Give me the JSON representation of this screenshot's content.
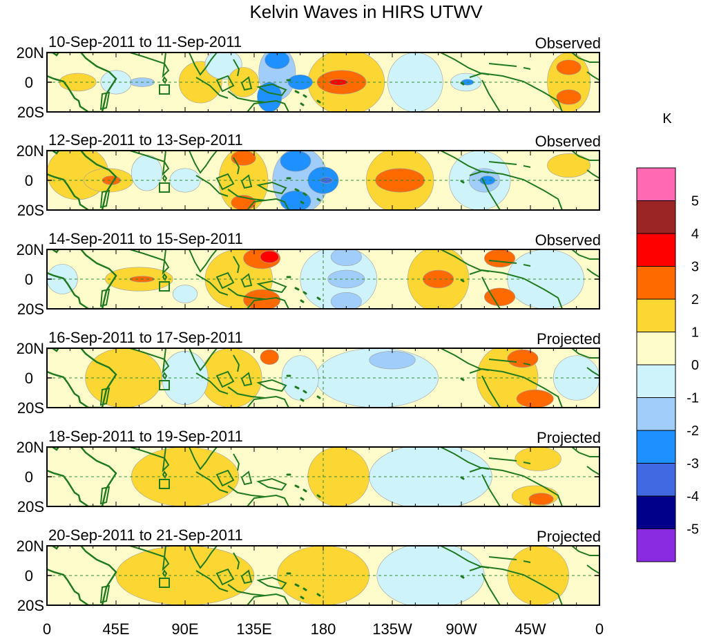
{
  "chart_data": {
    "type": "heatmap",
    "title": "Kelvin Waves in HIRS UTWV",
    "unit": "K",
    "lon_ticks": [
      "0",
      "45E",
      "90E",
      "135E",
      "180",
      "135W",
      "90W",
      "45W",
      "0"
    ],
    "lon_values_deg_east": [
      0,
      45,
      90,
      135,
      180,
      225,
      270,
      315,
      360
    ],
    "lat_ticks": [
      "20N",
      "0",
      "20S"
    ],
    "lat_range": [
      -20,
      20
    ],
    "colorbar": {
      "levels": [
        "5",
        "4",
        "3",
        "2",
        "1",
        "0",
        "-1",
        "-2",
        "-3",
        "-4",
        "-5"
      ],
      "colors": [
        "#ff69b4",
        "#9b2525",
        "#ff0000",
        "#ff6a00",
        "#fcd633",
        "#fffccb",
        "#cef3fb",
        "#a1cdfa",
        "#1e90ff",
        "#4169e1",
        "#00008b",
        "#8a2be2"
      ]
    },
    "panels": [
      {
        "date": "10-Sep-2011 to 11-Sep-2011",
        "status": "Observed",
        "blobs": [
          {
            "lon": 20,
            "lat": 0,
            "rlon": 12,
            "rlat": 6,
            "v": 1
          },
          {
            "lon": 45,
            "lat": 0,
            "rlon": 10,
            "rlat": 8,
            "v": -1
          },
          {
            "lon": 62,
            "lat": 0,
            "rlon": 8,
            "rlat": 3,
            "v": -2
          },
          {
            "lon": 100,
            "lat": 0,
            "rlon": 14,
            "rlat": 14,
            "v": 1
          },
          {
            "lon": 115,
            "lat": 12,
            "rlon": 12,
            "rlat": 10,
            "v": -1
          },
          {
            "lon": 128,
            "lat": 0,
            "rlon": 10,
            "rlat": 10,
            "v": 1
          },
          {
            "lon": 150,
            "lat": 6,
            "rlon": 12,
            "rlat": 18,
            "v": -2
          },
          {
            "lon": 145,
            "lat": -10,
            "rlon": 8,
            "rlat": 10,
            "v": -3
          },
          {
            "lon": 150,
            "lat": 15,
            "rlon": 8,
            "rlat": 6,
            "v": -3
          },
          {
            "lon": 165,
            "lat": 0,
            "rlon": 8,
            "rlat": 5,
            "v": -3
          },
          {
            "lon": 195,
            "lat": 0,
            "rlon": 25,
            "rlat": 22,
            "v": 1
          },
          {
            "lon": 192,
            "lat": 0,
            "rlon": 16,
            "rlat": 8,
            "v": 2
          },
          {
            "lon": 190,
            "lat": 0,
            "rlon": 6,
            "rlat": 2,
            "v": 3
          },
          {
            "lon": 240,
            "lat": 0,
            "rlon": 18,
            "rlat": 20,
            "v": -1
          },
          {
            "lon": 273,
            "lat": 0,
            "rlon": 10,
            "rlat": 6,
            "v": -1
          },
          {
            "lon": 274,
            "lat": 0,
            "rlon": 4,
            "rlat": 2,
            "v": -3
          },
          {
            "lon": 340,
            "lat": 0,
            "rlon": 14,
            "rlat": 20,
            "v": 1
          },
          {
            "lon": 340,
            "lat": 10,
            "rlon": 8,
            "rlat": 5,
            "v": 2
          },
          {
            "lon": 340,
            "lat": -10,
            "rlon": 8,
            "rlat": 5,
            "v": 2
          }
        ]
      },
      {
        "date": "12-Sep-2011 to 13-Sep-2011",
        "status": "Observed",
        "blobs": [
          {
            "lon": 20,
            "lat": 5,
            "rlon": 20,
            "rlat": 18,
            "v": 1
          },
          {
            "lon": 40,
            "lat": 0,
            "rlon": 16,
            "rlat": 8,
            "v": 1
          },
          {
            "lon": 42,
            "lat": 0,
            "rlon": 6,
            "rlat": 3,
            "v": 2
          },
          {
            "lon": 65,
            "lat": 5,
            "rlon": 10,
            "rlat": 12,
            "v": -1
          },
          {
            "lon": 90,
            "lat": 0,
            "rlon": 10,
            "rlat": 8,
            "v": -1
          },
          {
            "lon": 128,
            "lat": 0,
            "rlon": 16,
            "rlat": 22,
            "v": 1
          },
          {
            "lon": 128,
            "lat": 15,
            "rlon": 8,
            "rlat": 5,
            "v": 2
          },
          {
            "lon": 128,
            "lat": -15,
            "rlon": 8,
            "rlat": 5,
            "v": 2
          },
          {
            "lon": 165,
            "lat": 0,
            "rlon": 18,
            "rlat": 22,
            "v": -2
          },
          {
            "lon": 162,
            "lat": 13,
            "rlon": 10,
            "rlat": 7,
            "v": -3
          },
          {
            "lon": 162,
            "lat": -14,
            "rlon": 10,
            "rlat": 7,
            "v": -3
          },
          {
            "lon": 180,
            "lat": 0,
            "rlon": 10,
            "rlat": 9,
            "v": -3
          },
          {
            "lon": 182,
            "lat": 0,
            "rlon": 4,
            "rlat": 2,
            "v": -4
          },
          {
            "lon": 230,
            "lat": 0,
            "rlon": 22,
            "rlat": 22,
            "v": 1
          },
          {
            "lon": 230,
            "lat": 0,
            "rlon": 16,
            "rlat": 8,
            "v": 2
          },
          {
            "lon": 282,
            "lat": 0,
            "rlon": 20,
            "rlat": 20,
            "v": -1
          },
          {
            "lon": 285,
            "lat": 0,
            "rlon": 10,
            "rlat": 8,
            "v": -2
          },
          {
            "lon": 287,
            "lat": 0,
            "rlon": 5,
            "rlat": 3,
            "v": -3
          },
          {
            "lon": 340,
            "lat": 10,
            "rlon": 14,
            "rlat": 8,
            "v": 1
          }
        ]
      },
      {
        "date": "14-Sep-2011 to 15-Sep-2011",
        "status": "Observed",
        "blobs": [
          {
            "lon": 10,
            "lat": 0,
            "rlon": 10,
            "rlat": 10,
            "v": -1
          },
          {
            "lon": 60,
            "lat": 0,
            "rlon": 22,
            "rlat": 8,
            "v": 1
          },
          {
            "lon": 62,
            "lat": 0,
            "rlon": 8,
            "rlat": 2,
            "v": 2
          },
          {
            "lon": 90,
            "lat": -10,
            "rlon": 8,
            "rlat": 6,
            "v": -1
          },
          {
            "lon": 125,
            "lat": 0,
            "rlon": 22,
            "rlat": 20,
            "v": 1
          },
          {
            "lon": 140,
            "lat": 14,
            "rlon": 12,
            "rlat": 7,
            "v": 2
          },
          {
            "lon": 145,
            "lat": 15,
            "rlon": 6,
            "rlat": 4,
            "v": 3
          },
          {
            "lon": 140,
            "lat": -14,
            "rlon": 12,
            "rlat": 7,
            "v": 2
          },
          {
            "lon": 190,
            "lat": 0,
            "rlon": 25,
            "rlat": 22,
            "v": -1
          },
          {
            "lon": 195,
            "lat": 0,
            "rlon": 12,
            "rlat": 6,
            "v": -2
          },
          {
            "lon": 195,
            "lat": 15,
            "rlon": 10,
            "rlat": 6,
            "v": -2
          },
          {
            "lon": 195,
            "lat": -15,
            "rlon": 10,
            "rlat": 6,
            "v": -2
          },
          {
            "lon": 255,
            "lat": 0,
            "rlon": 20,
            "rlat": 22,
            "v": 1
          },
          {
            "lon": 255,
            "lat": 0,
            "rlon": 10,
            "rlat": 6,
            "v": 2
          },
          {
            "lon": 295,
            "lat": 14,
            "rlon": 10,
            "rlat": 6,
            "v": 2
          },
          {
            "lon": 295,
            "lat": -12,
            "rlon": 10,
            "rlat": 6,
            "v": 2
          },
          {
            "lon": 325,
            "lat": 0,
            "rlon": 25,
            "rlat": 20,
            "v": -1
          }
        ]
      },
      {
        "date": "16-Sep-2011 to 17-Sep-2011",
        "status": "Projected",
        "blobs": [
          {
            "lon": 50,
            "lat": 0,
            "rlon": 25,
            "rlat": 20,
            "v": 1
          },
          {
            "lon": 90,
            "lat": 0,
            "rlon": 15,
            "rlat": 18,
            "v": -1
          },
          {
            "lon": 120,
            "lat": 0,
            "rlon": 20,
            "rlat": 20,
            "v": 1
          },
          {
            "lon": 145,
            "lat": 14,
            "rlon": 6,
            "rlat": 5,
            "v": 2
          },
          {
            "lon": 165,
            "lat": 0,
            "rlon": 12,
            "rlat": 15,
            "v": -1
          },
          {
            "lon": 215,
            "lat": 0,
            "rlon": 40,
            "rlat": 20,
            "v": -1
          },
          {
            "lon": 225,
            "lat": 12,
            "rlon": 15,
            "rlat": 6,
            "v": -2
          },
          {
            "lon": 300,
            "lat": 0,
            "rlon": 20,
            "rlat": 22,
            "v": 1
          },
          {
            "lon": 310,
            "lat": 13,
            "rlon": 10,
            "rlat": 6,
            "v": 2
          },
          {
            "lon": 318,
            "lat": -14,
            "rlon": 12,
            "rlat": 6,
            "v": 2
          },
          {
            "lon": 345,
            "lat": 0,
            "rlon": 15,
            "rlat": 15,
            "v": -1
          }
        ]
      },
      {
        "date": "18-Sep-2011 to 19-Sep-2011",
        "status": "Projected",
        "blobs": [
          {
            "lon": 90,
            "lat": 0,
            "rlon": 35,
            "rlat": 20,
            "v": 1
          },
          {
            "lon": 190,
            "lat": 0,
            "rlon": 20,
            "rlat": 20,
            "v": 1
          },
          {
            "lon": 250,
            "lat": 0,
            "rlon": 40,
            "rlat": 22,
            "v": -1
          },
          {
            "lon": 320,
            "lat": 12,
            "rlon": 15,
            "rlat": 8,
            "v": 1
          },
          {
            "lon": 318,
            "lat": -13,
            "rlon": 15,
            "rlat": 7,
            "v": 1
          },
          {
            "lon": 322,
            "lat": -15,
            "rlon": 8,
            "rlat": 4,
            "v": 2
          }
        ]
      },
      {
        "date": "20-Sep-2011 to 21-Sep-2011",
        "status": "Projected",
        "blobs": [
          {
            "lon": 90,
            "lat": 0,
            "rlon": 45,
            "rlat": 20,
            "v": 1
          },
          {
            "lon": 180,
            "lat": 0,
            "rlon": 30,
            "rlat": 20,
            "v": 1
          },
          {
            "lon": 250,
            "lat": 0,
            "rlon": 35,
            "rlat": 22,
            "v": -1
          },
          {
            "lon": 320,
            "lat": 0,
            "rlon": 20,
            "rlat": 20,
            "v": 1
          }
        ]
      }
    ]
  }
}
